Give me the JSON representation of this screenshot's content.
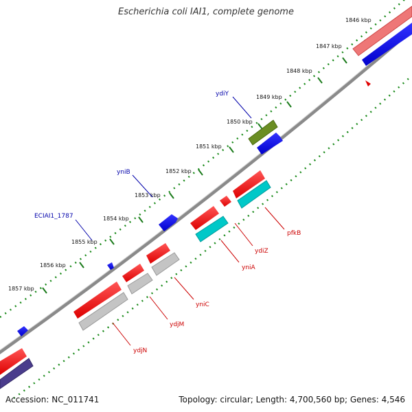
{
  "title": "Escherichia coli IAI1, complete genome",
  "footer": {
    "accession": "Accession: NC_011741",
    "summary": "Topology: circular; Length: 4,700,560 bp; Genes: 4,546"
  },
  "colors": {
    "backbone": "#7a7a7a",
    "tick": "#1a7a1a",
    "label_above": "#0000aa",
    "label_below": "#cc0000"
  },
  "ticks": [
    {
      "label": "1846 kbp"
    },
    {
      "label": "1847 kbp"
    },
    {
      "label": "1848 kbp"
    },
    {
      "label": "1849 kbp"
    },
    {
      "label": "1850 kbp"
    },
    {
      "label": "1851 kbp"
    },
    {
      "label": "1852 kbp"
    },
    {
      "label": "1853 kbp"
    },
    {
      "label": "1854 kbp"
    },
    {
      "label": "1855 kbp"
    },
    {
      "label": "1856 kbp"
    },
    {
      "label": "1857 kbp"
    }
  ],
  "gene_labels_above": [
    {
      "name": "ydiY"
    },
    {
      "name": "yniB"
    },
    {
      "name": "ECIAI1_1787"
    }
  ],
  "gene_labels_below": [
    {
      "name": "pfkB"
    },
    {
      "name": "ydiZ"
    },
    {
      "name": "yniA"
    },
    {
      "name": "yniC"
    },
    {
      "name": "ydjM"
    },
    {
      "name": "ydjN"
    }
  ]
}
